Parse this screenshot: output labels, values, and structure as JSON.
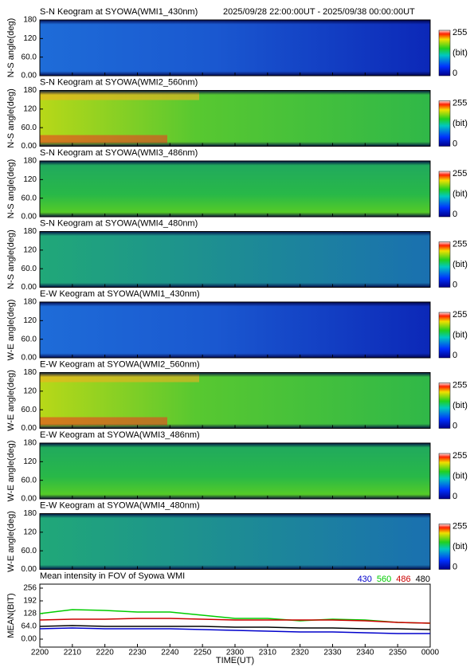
{
  "time_range": "2025/09/28 22:00:00UT - 2025/09/38 00:00:00UT",
  "chart_data": [
    {
      "type": "heatmap",
      "title": "S-N Keogram at SYOWA(WMI1_430nm)",
      "ylabel": "N-S angle(deg)",
      "ylim": [
        0,
        180
      ],
      "yticks": [
        {
          "value": 0,
          "label": "0.00"
        },
        {
          "value": 60,
          "label": "60.0"
        },
        120,
        180
      ],
      "clim": [
        0,
        255
      ],
      "colorbar_label": "(bit)"
    },
    {
      "type": "heatmap",
      "title": "S-N Keogram at SYOWA(WMI2_560nm)",
      "ylabel": "N-S angle(deg)",
      "ylim": [
        0,
        180
      ],
      "yticks": [
        {
          "value": 0,
          "label": "0.00"
        },
        {
          "value": 60,
          "label": "60.0"
        },
        120,
        180
      ],
      "clim": [
        0,
        255
      ],
      "colorbar_label": "(bit)"
    },
    {
      "type": "heatmap",
      "title": "S-N Keogram at SYOWA(WMI3_486nm)",
      "ylabel": "N-S angle(deg)",
      "ylim": [
        0,
        180
      ],
      "yticks": [
        {
          "value": 0,
          "label": "0.00"
        },
        {
          "value": 60,
          "label": "60.0"
        },
        120,
        180
      ],
      "clim": [
        0,
        255
      ],
      "colorbar_label": "(bit)"
    },
    {
      "type": "heatmap",
      "title": "S-N Keogram at SYOWA(WMI4_480nm)",
      "ylabel": "N-S angle(deg)",
      "ylim": [
        0,
        180
      ],
      "yticks": [
        {
          "value": 0,
          "label": "0.00"
        },
        {
          "value": 60,
          "label": "60.0"
        },
        120,
        180
      ],
      "clim": [
        0,
        255
      ],
      "colorbar_label": "(bit)"
    },
    {
      "type": "heatmap",
      "title": "E-W Keogram at SYOWA(WMI1_430nm)",
      "ylabel": "W-E angle(deg)",
      "ylim": [
        0,
        180
      ],
      "yticks": [
        {
          "value": 0,
          "label": "0.00"
        },
        {
          "value": 60,
          "label": "60.0"
        },
        120,
        180
      ],
      "clim": [
        0,
        255
      ],
      "colorbar_label": "(bit)"
    },
    {
      "type": "heatmap",
      "title": "E-W Keogram at SYOWA(WMI2_560nm)",
      "ylabel": "W-E angle(deg)",
      "ylim": [
        0,
        180
      ],
      "yticks": [
        {
          "value": 0,
          "label": "0.00"
        },
        {
          "value": 60,
          "label": "60.0"
        },
        120,
        180
      ],
      "clim": [
        0,
        255
      ],
      "colorbar_label": "(bit)"
    },
    {
      "type": "heatmap",
      "title": "E-W Keogram at SYOWA(WMI3_486nm)",
      "ylabel": "W-E angle(deg)",
      "ylim": [
        0,
        180
      ],
      "yticks": [
        {
          "value": 0,
          "label": "0.00"
        },
        {
          "value": 60,
          "label": "60.0"
        },
        120,
        180
      ],
      "clim": [
        0,
        255
      ],
      "colorbar_label": "(bit)"
    },
    {
      "type": "heatmap",
      "title": "E-W Keogram at SYOWA(WMI4_480nm)",
      "ylabel": "W-E angle(deg)",
      "ylim": [
        0,
        180
      ],
      "yticks": [
        {
          "value": 0,
          "label": "0.00"
        },
        {
          "value": 60,
          "label": "60.0"
        },
        120,
        180
      ],
      "clim": [
        0,
        255
      ],
      "colorbar_label": "(bit)"
    },
    {
      "type": "line",
      "title": "Mean intensity in FOV of Syowa WMI",
      "ylabel": "MEAN(BIT)",
      "xlabel": "TIME(UT)",
      "x": [
        0,
        10,
        20,
        30,
        40,
        50,
        60,
        70,
        80,
        90,
        100,
        110,
        120
      ],
      "xlim": [
        0,
        120
      ],
      "xticks": [
        {
          "value": 0,
          "label": "2200"
        },
        {
          "value": 10,
          "label": "2210"
        },
        {
          "value": 20,
          "label": "2220"
        },
        {
          "value": 30,
          "label": "2230"
        },
        {
          "value": 40,
          "label": "2240"
        },
        {
          "value": 50,
          "label": "2250"
        },
        {
          "value": 60,
          "label": "2300"
        },
        {
          "value": 70,
          "label": "2310"
        },
        {
          "value": 80,
          "label": "2320"
        },
        {
          "value": 90,
          "label": "2330"
        },
        {
          "value": 100,
          "label": "2340"
        },
        {
          "value": 110,
          "label": "2350"
        },
        {
          "value": 120,
          "label": "0000"
        }
      ],
      "ylim": [
        -40,
        276
      ],
      "yticks": [
        {
          "value": 0,
          "label": "0.00"
        },
        {
          "value": 64,
          "label": "64.0"
        },
        128,
        192,
        256
      ],
      "series": [
        {
          "name": "430",
          "color": "#0000cc",
          "values": [
            52,
            56,
            52,
            52,
            52,
            48,
            44,
            40,
            36,
            36,
            32,
            28,
            28
          ]
        },
        {
          "name": "560",
          "color": "#00cc00",
          "values": [
            128,
            148,
            144,
            136,
            136,
            120,
            104,
            104,
            92,
            100,
            96,
            84,
            80
          ]
        },
        {
          "name": "486",
          "color": "#cc0000",
          "values": [
            96,
            100,
            100,
            104,
            104,
            100,
            96,
            96,
            96,
            96,
            92,
            84,
            80
          ]
        },
        {
          "name": "480",
          "color": "#000000",
          "values": [
            64,
            68,
            64,
            64,
            64,
            64,
            60,
            60,
            56,
            56,
            52,
            52,
            48
          ]
        }
      ]
    }
  ]
}
